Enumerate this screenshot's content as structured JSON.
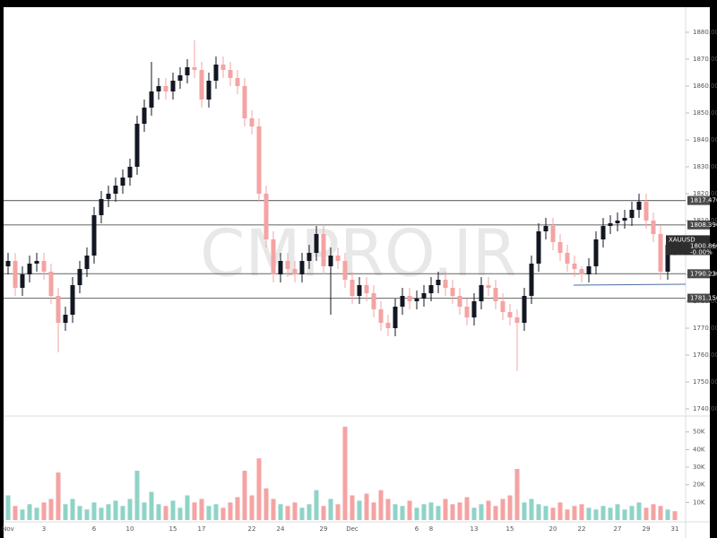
{
  "chart_data": {
    "type": "candlestick",
    "watermark": "CMPRO.IR",
    "categories": [
      "Nov",
      null,
      null,
      null,
      null,
      "3",
      null,
      null,
      null,
      null,
      null,
      null,
      "6",
      null,
      null,
      null,
      null,
      "10",
      null,
      null,
      null,
      null,
      null,
      "15",
      null,
      null,
      null,
      "17",
      null,
      null,
      null,
      null,
      null,
      null,
      "22",
      null,
      null,
      null,
      "24",
      null,
      null,
      null,
      null,
      null,
      "29",
      null,
      null,
      null,
      "Dec",
      null,
      null,
      null,
      null,
      null,
      null,
      null,
      null,
      "6",
      null,
      "8",
      null,
      null,
      null,
      null,
      null,
      "13",
      null,
      null,
      null,
      null,
      "15",
      null,
      null,
      null,
      null,
      null,
      "20",
      null,
      null,
      null,
      "22",
      null,
      null,
      null,
      null,
      "27",
      null,
      null,
      null,
      "29",
      null,
      null,
      null,
      "31"
    ],
    "open": [
      1793,
      1795,
      1785,
      1790,
      1794,
      1795,
      1791,
      1782,
      1772,
      1775,
      1786,
      1792,
      1797,
      1812,
      1818,
      1820,
      1823,
      1826,
      1830,
      1846,
      1852,
      1858,
      1860,
      1858,
      1862,
      1864,
      1867,
      1866,
      1855,
      1862,
      1868,
      1866,
      1863,
      1860,
      1848,
      1845,
      1820,
      1803,
      1790,
      1795,
      1792,
      1790,
      1795,
      1798,
      1805,
      1793,
      1797,
      1795,
      1788,
      1782,
      1786,
      1783,
      1777,
      1772,
      1770,
      1778,
      1782,
      1780,
      1781,
      1783,
      1786,
      1788,
      1785,
      1782,
      1778,
      1774,
      1780,
      1786,
      1785,
      1780,
      1776,
      1774,
      1772,
      1782,
      1794,
      1806,
      1808,
      1802,
      1798,
      1794,
      1792,
      1790,
      1793,
      1803,
      1808,
      1809,
      1810,
      1811,
      1814,
      1817,
      1810,
      1805,
      1791,
      1801
    ],
    "high": [
      1798,
      1798,
      1793,
      1797,
      1798,
      1798,
      1794,
      1785,
      1778,
      1789,
      1795,
      1800,
      1815,
      1821,
      1823,
      1826,
      1829,
      1833,
      1849,
      1855,
      1869,
      1863,
      1863,
      1865,
      1867,
      1870,
      1877,
      1869,
      1865,
      1871,
      1871,
      1869,
      1866,
      1863,
      1851,
      1848,
      1823,
      1806,
      1798,
      1798,
      1795,
      1798,
      1801,
      1808,
      1808,
      1800,
      1800,
      1798,
      1791,
      1789,
      1789,
      1786,
      1780,
      1775,
      1781,
      1785,
      1785,
      1784,
      1786,
      1789,
      1791,
      1791,
      1788,
      1785,
      1781,
      1783,
      1789,
      1789,
      1788,
      1783,
      1779,
      1777,
      1785,
      1797,
      1809,
      1811,
      1811,
      1805,
      1801,
      1797,
      1793,
      1796,
      1806,
      1811,
      1812,
      1813,
      1814,
      1817,
      1820,
      1820,
      1813,
      1808,
      1804,
      1804
    ],
    "low": [
      1790,
      1782,
      1782,
      1787,
      1791,
      1788,
      1779,
      1761,
      1769,
      1772,
      1783,
      1789,
      1794,
      1809,
      1815,
      1817,
      1820,
      1823,
      1827,
      1843,
      1849,
      1855,
      1855,
      1855,
      1859,
      1861,
      1863,
      1852,
      1852,
      1859,
      1863,
      1860,
      1857,
      1845,
      1842,
      1817,
      1800,
      1787,
      1787,
      1789,
      1787,
      1787,
      1792,
      1795,
      1790,
      1775,
      1792,
      1785,
      1779,
      1779,
      1780,
      1774,
      1769,
      1767,
      1767,
      1775,
      1777,
      1777,
      1778,
      1780,
      1783,
      1782,
      1779,
      1775,
      1771,
      1771,
      1777,
      1782,
      1777,
      1773,
      1771,
      1754,
      1769,
      1779,
      1791,
      1803,
      1799,
      1795,
      1791,
      1789,
      1787,
      1787,
      1790,
      1800,
      1805,
      1806,
      1807,
      1808,
      1811,
      1807,
      1802,
      1788,
      1788,
      1797
    ],
    "close": [
      1795,
      1785,
      1790,
      1794,
      1795,
      1791,
      1782,
      1772,
      1775,
      1786,
      1792,
      1797,
      1812,
      1818,
      1820,
      1823,
      1826,
      1830,
      1846,
      1852,
      1858,
      1860,
      1858,
      1862,
      1864,
      1867,
      1866,
      1855,
      1862,
      1868,
      1866,
      1863,
      1860,
      1848,
      1845,
      1820,
      1803,
      1790,
      1795,
      1792,
      1790,
      1795,
      1798,
      1805,
      1793,
      1797,
      1795,
      1788,
      1782,
      1786,
      1783,
      1777,
      1772,
      1770,
      1778,
      1782,
      1780,
      1781,
      1783,
      1786,
      1788,
      1785,
      1782,
      1778,
      1774,
      1780,
      1786,
      1785,
      1780,
      1776,
      1774,
      1772,
      1782,
      1794,
      1806,
      1808,
      1802,
      1798,
      1794,
      1792,
      1790,
      1793,
      1803,
      1808,
      1809,
      1810,
      1811,
      1814,
      1817,
      1810,
      1805,
      1791,
      1801,
      1800
    ],
    "volume": [
      14000,
      8000,
      6000,
      9000,
      7000,
      10000,
      12000,
      27000,
      9000,
      12000,
      8000,
      6000,
      10000,
      7000,
      9000,
      11000,
      8000,
      12000,
      28000,
      10000,
      16000,
      9000,
      8000,
      11000,
      7000,
      14000,
      10000,
      12000,
      8000,
      9000,
      7000,
      10000,
      13000,
      28000,
      14000,
      35000,
      18000,
      12000,
      9000,
      8000,
      10000,
      7000,
      9000,
      17000,
      8000,
      12000,
      9000,
      53000,
      14000,
      11000,
      15000,
      10000,
      17000,
      12000,
      9000,
      8000,
      11000,
      7000,
      9000,
      10000,
      8000,
      12000,
      9000,
      10000,
      13000,
      7000,
      9000,
      11000,
      8000,
      12000,
      14000,
      29000,
      10000,
      12000,
      9000,
      8000,
      7000,
      10000,
      6000,
      8000,
      9000,
      7000,
      6000,
      8000,
      7000,
      9000,
      6000,
      8000,
      10000,
      7000,
      9000,
      8000,
      6000,
      5000
    ],
    "up_color": "#131722",
    "down_color": "#f4a3a3",
    "volume_up_color": "#8fd3c7",
    "volume_down_color": "#f4a3a3",
    "ylim": [
      1740,
      1880
    ],
    "yticks": [
      {
        "value": 1740,
        "label": "1740.000"
      },
      {
        "value": 1750,
        "label": "1750.000"
      },
      {
        "value": 1760,
        "label": "1760.000"
      },
      {
        "value": 1770,
        "label": "1770.000"
      },
      {
        "value": 1780,
        "label": "1780.000"
      },
      {
        "value": 1790,
        "label": "1790.000"
      },
      {
        "value": 1800,
        "label": "1800.000"
      },
      {
        "value": 1810,
        "label": "1810.000"
      },
      {
        "value": 1820,
        "label": "1820.000"
      },
      {
        "value": 1830,
        "label": "1830.000"
      },
      {
        "value": 1840,
        "label": "1840.000"
      },
      {
        "value": 1850,
        "label": "1850.000"
      },
      {
        "value": 1860,
        "label": "1860.000"
      },
      {
        "value": 1870,
        "label": "1870.000"
      },
      {
        "value": 1880,
        "label": "1880.000"
      }
    ],
    "vlim": [
      0,
      58000
    ],
    "vticks": [
      {
        "value": 10000,
        "label": "10K"
      },
      {
        "value": 20000,
        "label": "20K"
      },
      {
        "value": 30000,
        "label": "30K"
      },
      {
        "value": 40000,
        "label": "40K"
      },
      {
        "value": 50000,
        "label": "50K"
      }
    ],
    "levels": [
      {
        "value": 1817.47,
        "label": "1817.470"
      },
      {
        "value": 1808.39,
        "label": "1808.390"
      },
      {
        "value": 1790.23,
        "label": "1790.230"
      },
      {
        "value": 1781.15,
        "label": "1781.150"
      }
    ],
    "last": {
      "symbol": "XAUUSD",
      "price": {
        "value": 1800.86,
        "label": "1800.860"
      },
      "change": "-0.00%"
    }
  }
}
